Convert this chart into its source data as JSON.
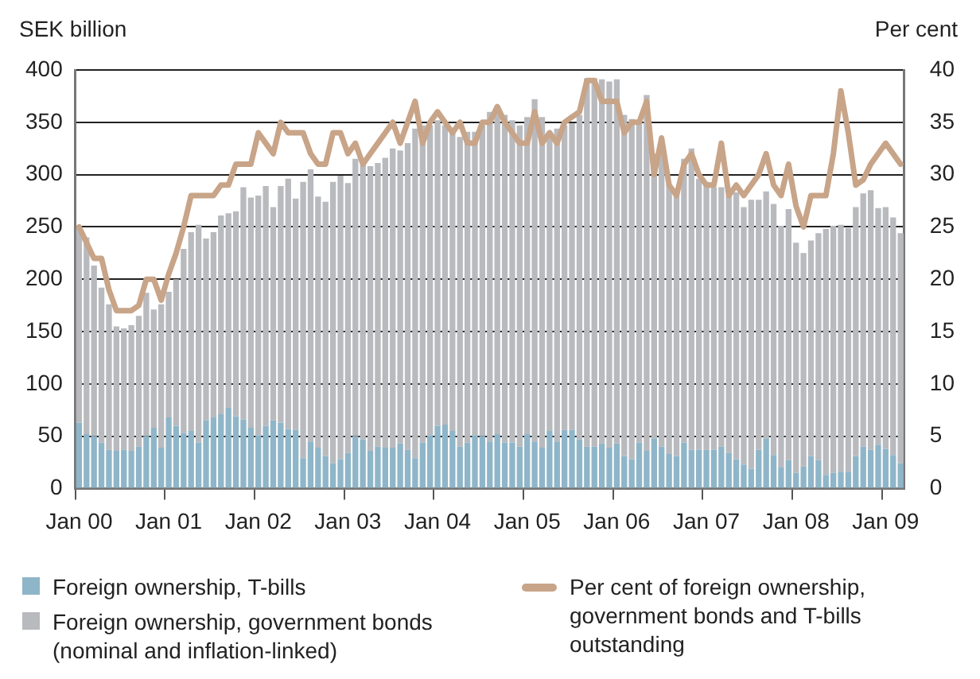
{
  "chart_data": {
    "type": "bar",
    "stacked": true,
    "ylabel": "SEK billion",
    "y2label": "Per cent",
    "categories": [
      "Jan 00",
      null,
      null,
      null,
      null,
      null,
      null,
      null,
      null,
      null,
      null,
      null,
      "Jan 01",
      null,
      null,
      null,
      null,
      null,
      null,
      null,
      null,
      null,
      null,
      null,
      "Jan 02",
      null,
      null,
      null,
      null,
      null,
      null,
      null,
      null,
      null,
      null,
      null,
      "Jan 03",
      null,
      null,
      null,
      null,
      null,
      null,
      null,
      null,
      null,
      null,
      null,
      "Jan 04",
      null,
      null,
      null,
      null,
      null,
      null,
      null,
      null,
      null,
      null,
      null,
      "Jan 05",
      null,
      null,
      null,
      null,
      null,
      null,
      null,
      null,
      null,
      null,
      null,
      "Jan 06",
      null,
      null,
      null,
      null,
      null,
      null,
      null,
      null,
      null,
      null,
      null,
      "Jan 07",
      null,
      null,
      null,
      null,
      null,
      null,
      null,
      null,
      null,
      null,
      null,
      "Jan 08",
      null,
      null,
      null,
      null,
      null,
      null,
      null,
      null,
      null,
      null,
      null,
      "Jan 09",
      null,
      null
    ],
    "series": [
      {
        "name": "Foreign ownership, T-bills",
        "color": "#8fb5c8",
        "values": [
          63,
          52,
          50,
          44,
          37,
          36,
          37,
          36,
          40,
          50,
          58,
          39,
          68,
          60,
          53,
          55,
          44,
          65,
          68,
          71,
          77,
          69,
          66,
          58,
          51,
          60,
          65,
          63,
          57,
          56,
          29,
          45,
          39,
          31,
          24,
          28,
          34,
          50,
          47,
          36,
          40,
          39,
          39,
          43,
          37,
          29,
          44,
          51,
          60,
          61,
          55,
          40,
          44,
          51,
          50,
          45,
          52,
          44,
          44,
          40,
          52,
          45,
          39,
          55,
          45,
          56,
          56,
          47,
          40,
          40,
          43,
          39,
          43,
          31,
          28,
          44,
          36,
          48,
          40,
          33,
          31,
          44,
          37,
          37,
          37,
          37,
          40,
          34,
          28,
          23,
          19,
          37,
          48,
          32,
          20,
          27,
          15,
          21,
          31,
          27,
          13,
          15,
          16,
          16,
          31,
          40,
          37,
          42,
          38,
          32,
          24
        ]
      },
      {
        "name": "Foreign ownership, government bonds (nominal and inflation-linked)",
        "color": "#b9babe",
        "values": [
          187,
          188,
          163,
          148,
          139,
          119,
          116,
          120,
          125,
          137,
          113,
          137,
          120,
          140,
          176,
          190,
          208,
          174,
          177,
          190,
          186,
          196,
          222,
          220,
          229,
          229,
          204,
          226,
          239,
          221,
          264,
          260,
          240,
          243,
          269,
          271,
          258,
          265,
          262,
          272,
          271,
          277,
          286,
          280,
          293,
          315,
          303,
          296,
          292,
          286,
          289,
          296,
          297,
          290,
          297,
          315,
          311,
          313,
          308,
          307,
          303,
          327,
          316,
          286,
          299,
          291,
          293,
          310,
          352,
          352,
          348,
          350,
          348,
          326,
          325,
          308,
          340,
          272,
          285,
          258,
          254,
          271,
          288,
          259,
          256,
          251,
          248,
          246,
          255,
          246,
          257,
          239,
          236,
          240,
          231,
          240,
          220,
          204,
          206,
          217,
          235,
          236,
          236,
          233,
          238,
          242,
          248,
          226,
          231,
          227,
          220
        ]
      },
      {
        "name": "Per cent of foreign ownership, government bonds and T-bills outstanding",
        "color": "#c8a488",
        "type": "line",
        "axis": "y2",
        "values": [
          25,
          23.5,
          22,
          22,
          19,
          17,
          17,
          17,
          17.5,
          20,
          20,
          18,
          20.5,
          22.5,
          25,
          28,
          28,
          28,
          28,
          29,
          29,
          31,
          31,
          31,
          34,
          33,
          32,
          35,
          34,
          34,
          34,
          32,
          31,
          31,
          34,
          34,
          32,
          33,
          31,
          32,
          33,
          34,
          35,
          33,
          35,
          37,
          33,
          35,
          36,
          35,
          34,
          35,
          33,
          33,
          35,
          35,
          36.5,
          35,
          34,
          33,
          33,
          36,
          33,
          34,
          33,
          35,
          35.5,
          36,
          39,
          39,
          37,
          37,
          37,
          34,
          35,
          35,
          37,
          30,
          33.5,
          29,
          28,
          31,
          32,
          30,
          29,
          29,
          33,
          28,
          29,
          28,
          29,
          30,
          32,
          29,
          28,
          31,
          27,
          25,
          28,
          28,
          28,
          32,
          38,
          34,
          29,
          29.5,
          31,
          32,
          33,
          32,
          31
        ]
      }
    ],
    "ylim": [
      0,
      400
    ],
    "yticks": [
      0,
      50,
      100,
      150,
      200,
      250,
      300,
      350,
      400
    ],
    "y2lim": [
      0,
      40
    ],
    "y2ticks": [
      0,
      5,
      10,
      15,
      20,
      25,
      30,
      35,
      40
    ],
    "grid": "y",
    "legend": "bottom"
  }
}
